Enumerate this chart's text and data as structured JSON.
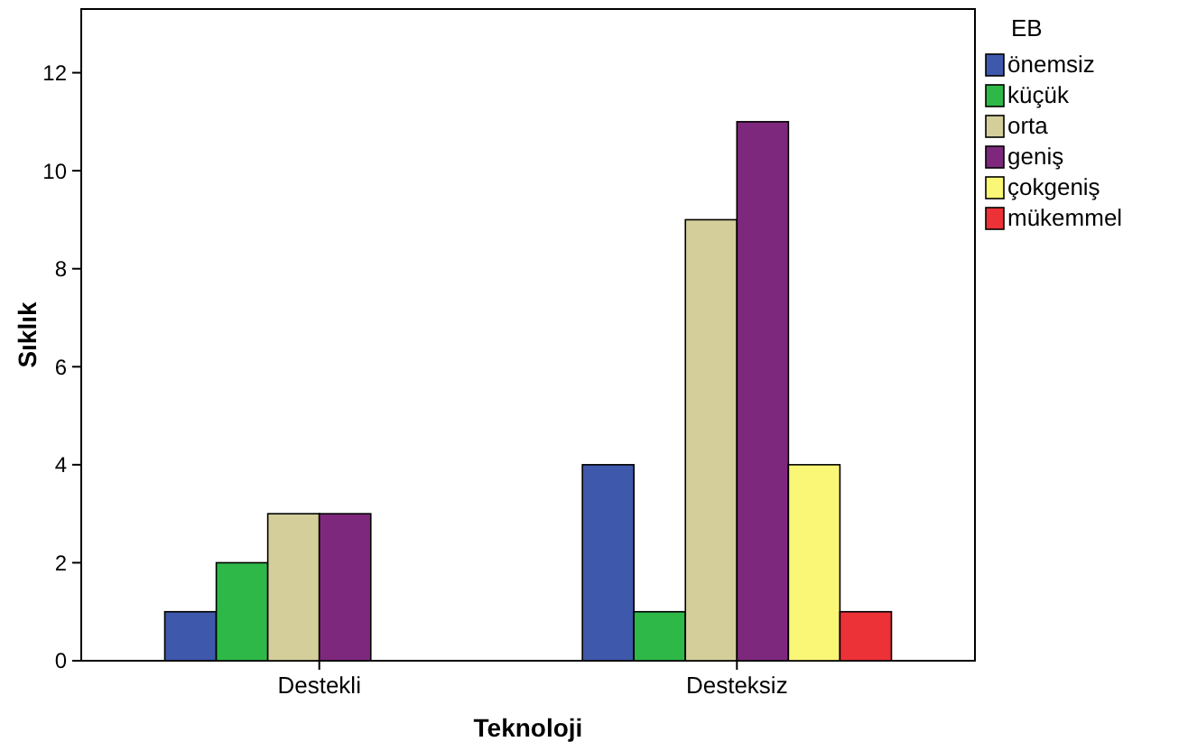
{
  "chart_data": {
    "type": "bar",
    "xlabel": "Teknoloji",
    "ylabel": "Sıklık",
    "legend_title": "EB",
    "legend": "right",
    "grid": false,
    "categories": [
      "Destekli",
      "Desteksiz"
    ],
    "ylim": [
      0,
      13.3
    ],
    "yticks": [
      0,
      2,
      4,
      6,
      8,
      10,
      12
    ],
    "series": [
      {
        "name": "önemsiz",
        "color": "#3e58ac",
        "values": [
          1,
          4
        ]
      },
      {
        "name": "küçük",
        "color": "#2eb848",
        "values": [
          2,
          1
        ]
      },
      {
        "name": "orta",
        "color": "#d4ce9a",
        "values": [
          3,
          9
        ]
      },
      {
        "name": "geniş",
        "color": "#7e287d",
        "values": [
          3,
          11
        ]
      },
      {
        "name": "çokgeniş",
        "color": "#fbf776",
        "values": [
          null,
          4
        ]
      },
      {
        "name": "mükemmel",
        "color": "#ed3237",
        "values": [
          null,
          1
        ]
      }
    ]
  }
}
